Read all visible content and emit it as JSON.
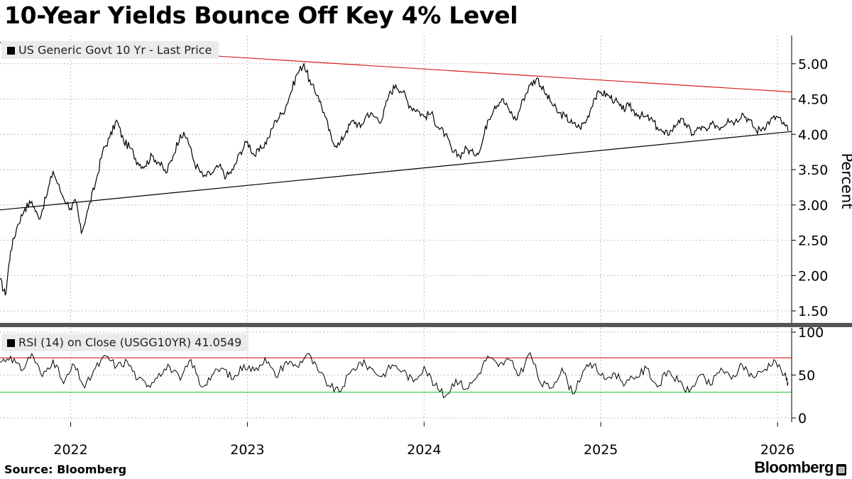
{
  "title": "10-Year Yields Bounce Off Key 4% Level",
  "source": "Source: Bloomberg",
  "brand": "Bloomberg",
  "chart_data": [
    {
      "type": "line",
      "legend": "US Generic Govt 10 Yr - Last Price",
      "ylabel": "Percent",
      "ylim": [
        1.3,
        5.4
      ],
      "yticks": [
        "1.50",
        "2.00",
        "2.50",
        "3.00",
        "3.50",
        "4.00",
        "4.50",
        "5.00"
      ],
      "xticks": [
        "2022",
        "2023",
        "2024",
        "2025",
        "2026"
      ],
      "xtick_dates": [
        2022.0,
        2023.0,
        2024.0,
        2025.0,
        2026.0
      ],
      "xlim": [
        2021.6,
        2026.08
      ],
      "series": [
        {
          "name": "US Generic Govt 10 Yr",
          "x": [
            2021.6,
            2021.63,
            2021.66,
            2021.7,
            2021.74,
            2021.78,
            2021.82,
            2021.86,
            2021.9,
            2021.95,
            2022.0,
            2022.03,
            2022.06,
            2022.1,
            2022.14,
            2022.18,
            2022.22,
            2022.26,
            2022.3,
            2022.34,
            2022.38,
            2022.42,
            2022.46,
            2022.5,
            2022.54,
            2022.58,
            2022.62,
            2022.66,
            2022.7,
            2022.75,
            2022.8,
            2022.84,
            2022.88,
            2022.92,
            2022.96,
            2023.0,
            2023.04,
            2023.08,
            2023.12,
            2023.16,
            2023.2,
            2023.24,
            2023.28,
            2023.32,
            2023.36,
            2023.4,
            2023.44,
            2023.48,
            2023.52,
            2023.56,
            2023.6,
            2023.64,
            2023.68,
            2023.72,
            2023.76,
            2023.8,
            2023.84,
            2023.88,
            2023.92,
            2023.96,
            2024.0,
            2024.04,
            2024.08,
            2024.12,
            2024.16,
            2024.2,
            2024.24,
            2024.28,
            2024.32,
            2024.36,
            2024.4,
            2024.44,
            2024.48,
            2024.52,
            2024.56,
            2024.6,
            2024.64,
            2024.68,
            2024.72,
            2024.76,
            2024.8,
            2024.84,
            2024.88,
            2024.92,
            2024.96,
            2025.0,
            2025.04,
            2025.08,
            2025.12,
            2025.16,
            2025.2,
            2025.24,
            2025.28,
            2025.32,
            2025.36,
            2025.4,
            2025.44,
            2025.48,
            2025.52,
            2025.56,
            2025.6,
            2025.64,
            2025.68,
            2025.72,
            2025.76,
            2025.8,
            2025.84,
            2025.88,
            2025.92,
            2025.96,
            2026.0,
            2026.03,
            2026.06
          ],
          "y": [
            1.95,
            1.72,
            2.35,
            2.72,
            2.95,
            3.05,
            2.8,
            3.1,
            3.48,
            3.15,
            2.95,
            3.05,
            2.6,
            2.95,
            3.3,
            3.75,
            3.95,
            4.2,
            3.9,
            3.8,
            3.6,
            3.55,
            3.7,
            3.6,
            3.45,
            3.7,
            4.0,
            3.95,
            3.6,
            3.4,
            3.45,
            3.55,
            3.4,
            3.5,
            3.75,
            3.9,
            3.7,
            3.8,
            3.95,
            4.2,
            4.3,
            4.55,
            4.85,
            5.0,
            4.7,
            4.55,
            4.25,
            3.9,
            3.85,
            4.05,
            4.2,
            4.1,
            4.3,
            4.25,
            4.2,
            4.55,
            4.7,
            4.6,
            4.4,
            4.35,
            4.25,
            4.3,
            4.1,
            4.0,
            3.75,
            3.7,
            3.8,
            3.72,
            3.8,
            4.2,
            4.4,
            4.5,
            4.35,
            4.2,
            4.5,
            4.7,
            4.8,
            4.6,
            4.45,
            4.3,
            4.25,
            4.15,
            4.1,
            4.2,
            4.5,
            4.6,
            4.55,
            4.48,
            4.35,
            4.4,
            4.3,
            4.25,
            4.22,
            4.1,
            4.0,
            4.05,
            4.2,
            4.15,
            4.0,
            4.1,
            4.05,
            4.15,
            4.1,
            4.22,
            4.18,
            4.3,
            4.2,
            4.05,
            4.1,
            4.2,
            4.25,
            4.15,
            4.05
          ]
        }
      ],
      "trendlines": [
        {
          "name": "resistance",
          "color": "#d62020",
          "x": [
            2021.6,
            2026.08
          ],
          "y": [
            5.3,
            4.6
          ]
        },
        {
          "name": "support",
          "color": "#000000",
          "x": [
            2021.6,
            2026.08
          ],
          "y": [
            2.93,
            4.04
          ]
        }
      ]
    },
    {
      "type": "line",
      "legend": "RSI (14)  on Close (USGG10YR) 41.0549",
      "ylim": [
        -5,
        105
      ],
      "yticks": [
        "0",
        "50",
        "100"
      ],
      "ytick_values": [
        0,
        50,
        100
      ],
      "reference_lines": [
        {
          "name": "overbought",
          "value": 70,
          "color": "#d62020"
        },
        {
          "name": "oversold",
          "value": 30,
          "color": "#2ecc40"
        }
      ],
      "series": [
        {
          "name": "RSI (14)",
          "x": [
            2021.6,
            2021.66,
            2021.72,
            2021.78,
            2021.84,
            2021.9,
            2021.96,
            2022.02,
            2022.08,
            2022.14,
            2022.2,
            2022.26,
            2022.32,
            2022.38,
            2022.44,
            2022.5,
            2022.56,
            2022.62,
            2022.68,
            2022.74,
            2022.8,
            2022.86,
            2022.92,
            2022.98,
            2023.04,
            2023.1,
            2023.16,
            2023.22,
            2023.28,
            2023.34,
            2023.4,
            2023.46,
            2023.52,
            2023.58,
            2023.64,
            2023.7,
            2023.76,
            2023.82,
            2023.88,
            2023.94,
            2024.0,
            2024.06,
            2024.12,
            2024.18,
            2024.24,
            2024.3,
            2024.36,
            2024.42,
            2024.48,
            2024.54,
            2024.6,
            2024.66,
            2024.72,
            2024.78,
            2024.84,
            2024.9,
            2024.96,
            2025.02,
            2025.08,
            2025.14,
            2025.2,
            2025.26,
            2025.32,
            2025.38,
            2025.44,
            2025.5,
            2025.56,
            2025.62,
            2025.68,
            2025.74,
            2025.8,
            2025.86,
            2025.92,
            2025.98,
            2026.04,
            2026.06
          ],
          "y": [
            65,
            72,
            55,
            75,
            48,
            68,
            40,
            62,
            35,
            58,
            72,
            60,
            66,
            45,
            38,
            52,
            60,
            44,
            68,
            36,
            50,
            58,
            45,
            62,
            55,
            70,
            48,
            66,
            60,
            75,
            55,
            38,
            30,
            52,
            65,
            58,
            48,
            62,
            55,
            42,
            60,
            38,
            25,
            45,
            34,
            48,
            72,
            60,
            68,
            50,
            76,
            40,
            35,
            58,
            28,
            55,
            62,
            45,
            52,
            40,
            48,
            58,
            36,
            55,
            42,
            30,
            50,
            38,
            58,
            45,
            62,
            48,
            55,
            68,
            50,
            41
          ]
        }
      ]
    }
  ]
}
